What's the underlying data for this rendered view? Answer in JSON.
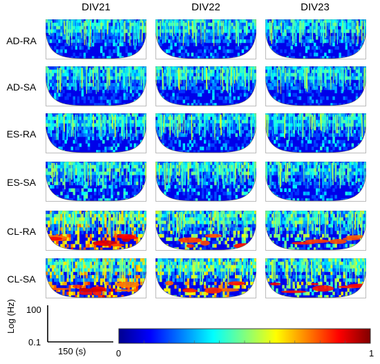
{
  "chart_data": {
    "type": "heatmap",
    "columns": [
      "DIV21",
      "DIV22",
      "DIV23"
    ],
    "rows": [
      "AD-RA",
      "AD-SA",
      "ES-RA",
      "ES-SA",
      "CL-RA",
      "CL-SA"
    ],
    "intensity_level": [
      [
        0.2,
        0.18,
        0.2
      ],
      [
        0.18,
        0.17,
        0.17
      ],
      [
        0.2,
        0.18,
        0.22
      ],
      [
        0.26,
        0.25,
        0.22
      ],
      [
        0.6,
        0.42,
        0.35
      ],
      [
        0.62,
        0.5,
        0.4
      ]
    ],
    "y_axis": {
      "label": "Log (Hz)",
      "top_tick": "100",
      "bottom_tick": "0.1"
    },
    "x_scale": {
      "label": "150 (s)"
    },
    "colorbar": {
      "min_label": "0",
      "max_label": "1",
      "stops": [
        "#00008f",
        "#0000ff",
        "#0080ff",
        "#00ffff",
        "#80ff80",
        "#ffff00",
        "#ff8000",
        "#ff0000",
        "#800000"
      ]
    }
  }
}
